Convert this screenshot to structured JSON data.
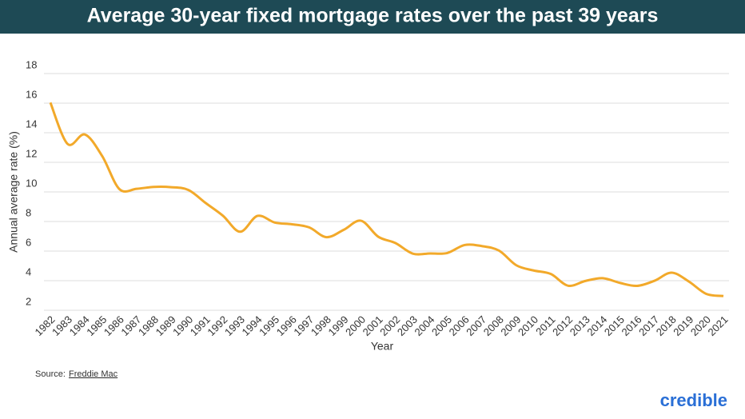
{
  "chart_data": {
    "type": "line",
    "title": "Average 30-year fixed mortgage rates over the past 39 years",
    "x_label": "Year",
    "y_label": "Annual average rate (%)",
    "categories": [
      "1982",
      "1983",
      "1984",
      "1985",
      "1986",
      "1987",
      "1988",
      "1989",
      "1990",
      "1991",
      "1992",
      "1993",
      "1994",
      "1995",
      "1996",
      "1997",
      "1998",
      "1999",
      "2000",
      "2001",
      "2002",
      "2003",
      "2004",
      "2005",
      "2006",
      "2007",
      "2008",
      "2009",
      "2010",
      "2011",
      "2012",
      "2013",
      "2014",
      "2015",
      "2016",
      "2017",
      "2018",
      "2019",
      "2020",
      "2021"
    ],
    "values": [
      16.04,
      13.24,
      13.88,
      12.43,
      10.19,
      10.21,
      10.34,
      10.32,
      10.13,
      9.25,
      8.39,
      7.31,
      8.38,
      7.93,
      7.81,
      7.6,
      6.94,
      7.44,
      8.05,
      6.97,
      6.54,
      5.83,
      5.84,
      5.87,
      6.41,
      6.34,
      6.03,
      5.04,
      4.69,
      4.45,
      3.66,
      3.98,
      4.17,
      3.85,
      3.65,
      3.99,
      4.54,
      3.94,
      3.11,
      2.96
    ],
    "color": "#f2a92a",
    "ylim": [
      2,
      18
    ],
    "yticks": [
      2,
      4,
      6,
      8,
      10,
      12,
      14,
      16,
      18
    ],
    "grid": true,
    "source_label": "Source:",
    "source": "Freddie Mac",
    "brand": "credible"
  }
}
